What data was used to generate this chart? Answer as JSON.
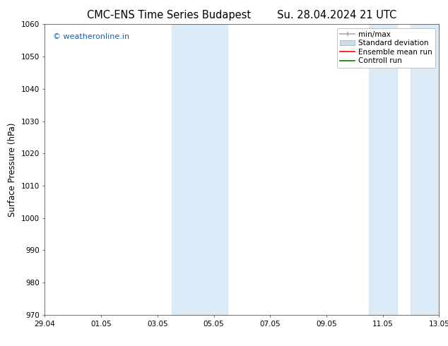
{
  "title_left": "CMC-ENS Time Series Budapest",
  "title_right": "Su. 28.04.2024 21 UTC",
  "ylabel": "Surface Pressure (hPa)",
  "ylim": [
    970,
    1060
  ],
  "yticks": [
    970,
    980,
    990,
    1000,
    1010,
    1020,
    1030,
    1040,
    1050,
    1060
  ],
  "xtick_labels": [
    "29.04",
    "01.05",
    "03.05",
    "05.05",
    "07.05",
    "09.05",
    "11.05",
    "13.05"
  ],
  "xtick_positions": [
    0,
    2,
    4,
    6,
    8,
    10,
    12,
    14
  ],
  "xlim": [
    0,
    14
  ],
  "shaded_regions": [
    {
      "xmin": 4.5,
      "xmax": 6.5
    },
    {
      "xmin": 11.5,
      "xmax": 12.5
    },
    {
      "xmin": 13.0,
      "xmax": 14.0
    }
  ],
  "watermark_text": "© weatheronline.in",
  "watermark_color": "#1a5fb4",
  "bg_color": "#ffffff",
  "shaded_color": "#daeaf7",
  "title_fontsize": 10.5,
  "axis_label_fontsize": 8.5,
  "tick_fontsize": 7.5,
  "legend_fontsize": 7.5
}
